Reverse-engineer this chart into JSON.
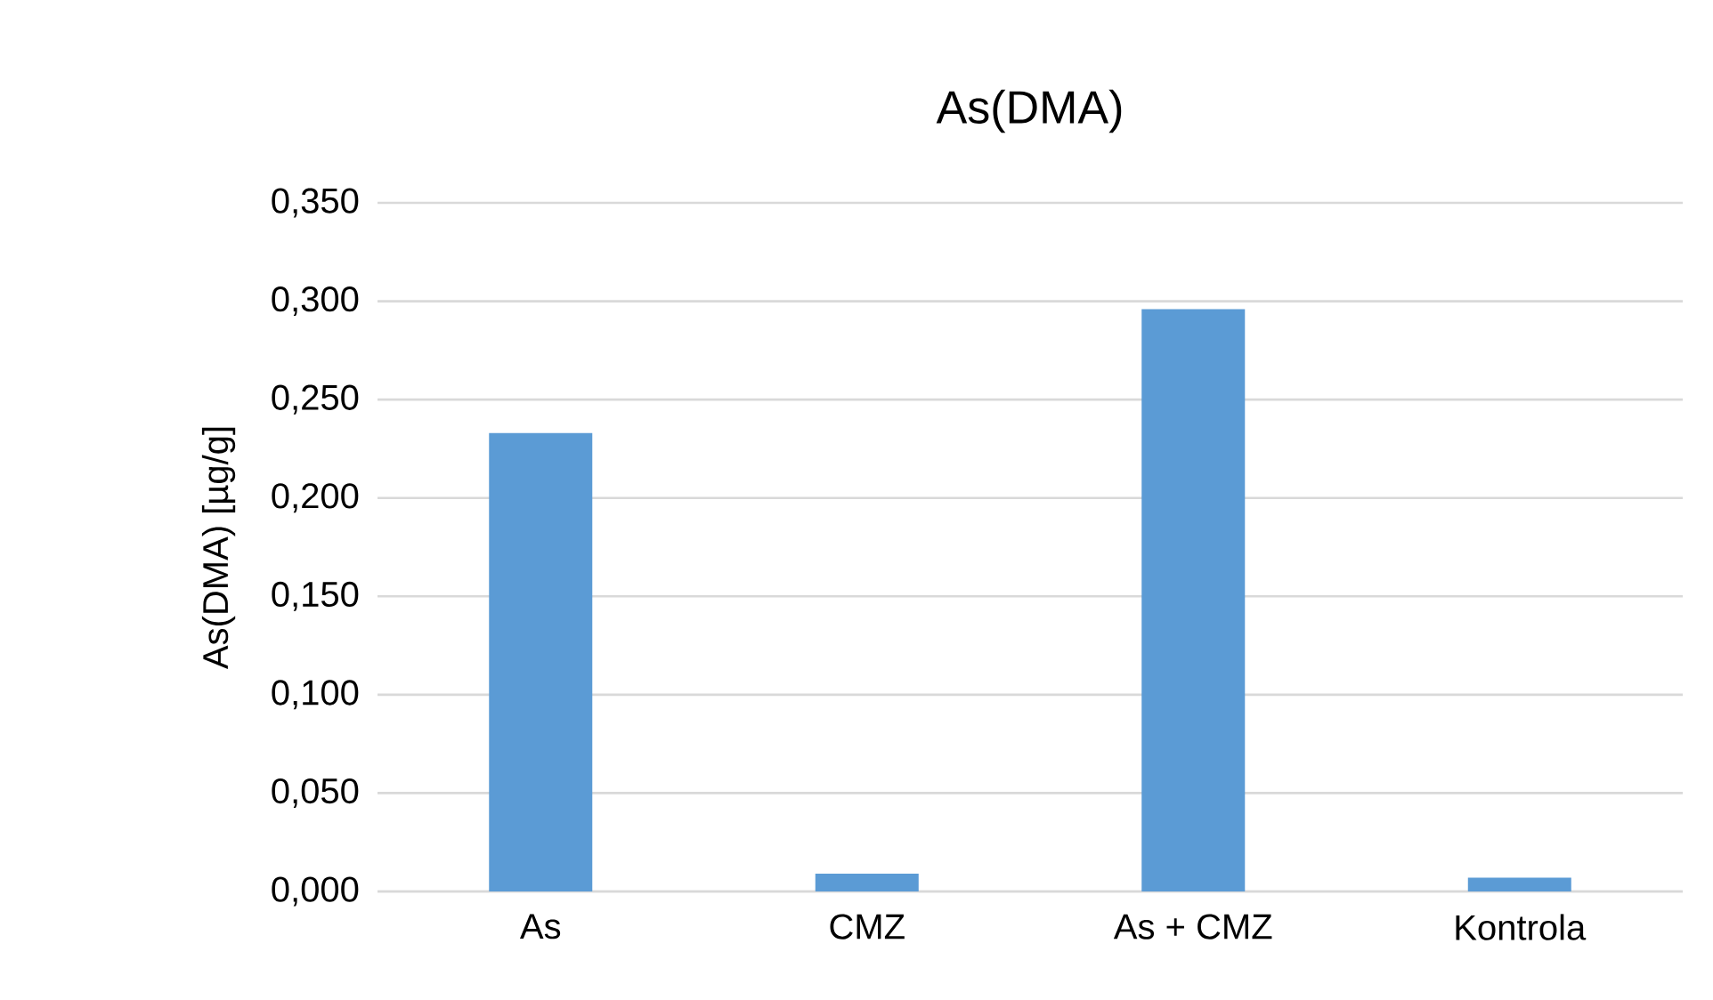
{
  "chart_data": {
    "type": "bar",
    "title": "As(DMA)",
    "ylabel": "As(DMA) [µg/g]",
    "categories": [
      "As",
      "CMZ",
      "As + CMZ",
      "Kontrola"
    ],
    "values": [
      0.233,
      0.009,
      0.296,
      0.007
    ],
    "color": "#5b9bd5",
    "ylim": [
      0,
      0.35
    ],
    "yticks": [
      {
        "value": 0,
        "label": "0,000"
      },
      {
        "value": 0.05,
        "label": "0,050"
      },
      {
        "value": 0.1,
        "label": "0,100"
      },
      {
        "value": 0.15,
        "label": "0,150"
      },
      {
        "value": 0.2,
        "label": "0,200"
      },
      {
        "value": 0.25,
        "label": "0,250"
      },
      {
        "value": 0.3,
        "label": "0,300"
      },
      {
        "value": 0.35,
        "label": "0,350"
      }
    ],
    "grid": "y"
  }
}
